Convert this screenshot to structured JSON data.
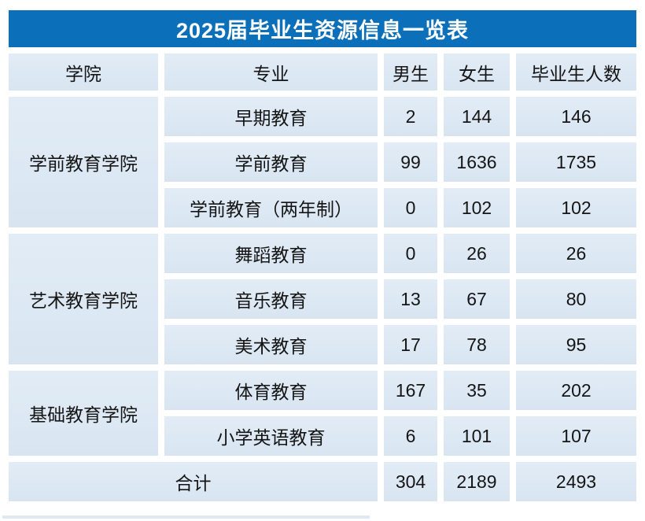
{
  "title": "2025届毕业生资源信息一览表",
  "colors": {
    "title_bar": "#0b70b9",
    "title_text": "#ffffff",
    "cell_bg": "#dce8f3",
    "gutter": "#ffffff",
    "text": "#151515"
  },
  "chart_data": {
    "type": "table",
    "title": "2025届毕业生资源信息一览表",
    "columns": [
      "学院",
      "专业",
      "男生",
      "女生",
      "毕业生人数"
    ],
    "groups": [
      {
        "college": "学前教育学院",
        "majors": [
          {
            "major": "早期教育",
            "male": "2",
            "female": "144",
            "total": "146"
          },
          {
            "major": "学前教育",
            "male": "99",
            "female": "1636",
            "total": "1735"
          },
          {
            "major": "学前教育（两年制）",
            "male": "0",
            "female": "102",
            "total": "102"
          }
        ]
      },
      {
        "college": "艺术教育学院",
        "majors": [
          {
            "major": "舞蹈教育",
            "male": "0",
            "female": "26",
            "total": "26"
          },
          {
            "major": "音乐教育",
            "male": "13",
            "female": "67",
            "total": "80"
          },
          {
            "major": "美术教育",
            "male": "17",
            "female": "78",
            "total": "95"
          }
        ]
      },
      {
        "college": "基础教育学院",
        "majors": [
          {
            "major": "体育教育",
            "male": "167",
            "female": "35",
            "total": "202"
          },
          {
            "major": "小学英语教育",
            "male": "6",
            "female": "101",
            "total": "107"
          }
        ]
      }
    ],
    "summary": {
      "label": "合计",
      "male": "304",
      "female": "2189",
      "total": "2493"
    }
  }
}
